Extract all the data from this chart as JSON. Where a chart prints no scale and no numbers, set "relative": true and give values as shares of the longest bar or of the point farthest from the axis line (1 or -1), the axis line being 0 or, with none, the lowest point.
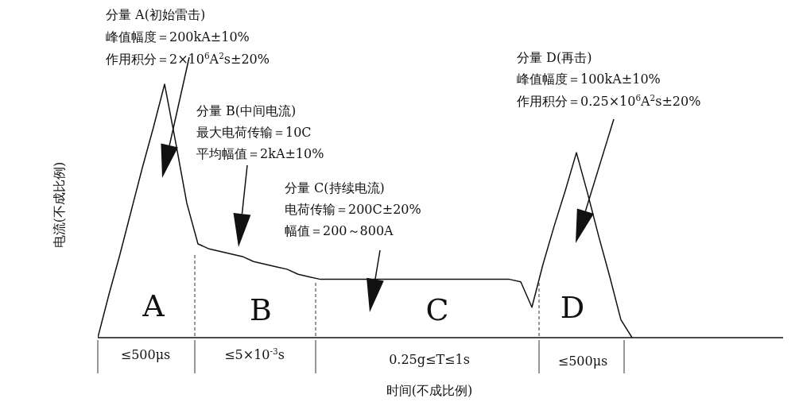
{
  "chart_data": {
    "type": "line",
    "relative": true,
    "xlabel": "时间(不成比例)",
    "ylabel": "电流(不成比例)",
    "color": "#111111",
    "marker": "none",
    "line_style": "solid",
    "categories": [
      null,
      null,
      null,
      null,
      null,
      null,
      null,
      null,
      null,
      null,
      null,
      null,
      null,
      null,
      null,
      null,
      null,
      null,
      null,
      null,
      null,
      null,
      null,
      null,
      null,
      null,
      null,
      null,
      null,
      null,
      null,
      null,
      null,
      null,
      null,
      null,
      null,
      null,
      null,
      null,
      null,
      null,
      null,
      null,
      null,
      null,
      null,
      null,
      null
    ],
    "values": [
      0,
      0.17,
      0.33,
      0.5,
      0.67,
      0.83,
      1,
      0.77,
      0.53,
      0.37,
      0.35,
      0.34,
      0.33,
      0.32,
      0.3,
      0.29,
      0.28,
      0.27,
      0.25,
      0.24,
      0.23,
      0.23,
      0.23,
      0.23,
      0.23,
      0.23,
      0.23,
      0.23,
      0.23,
      0.23,
      0.23,
      0.23,
      0.23,
      0.23,
      0.23,
      0.23,
      0.23,
      0.23,
      0.22,
      0.12,
      0.29,
      0.44,
      0.58,
      0.73,
      0.57,
      0.4,
      0.24,
      0.07,
      0
    ],
    "annotations": [
      "分量 A(初始雷击)",
      "峰值幅度＝200kA±10%",
      "作用积分＝2×10$^{6}$A$^{2}$s±20%",
      "分量 B(中间电流)",
      "最大电荷传输＝10C",
      "平均幅值＝2kA±10%",
      "分量 C(持续电流)",
      "电荷传输＝200C±20%",
      "幅值＝200～800A",
      "分量 D(再击)",
      "峰值幅度＝100kA±10%",
      "作用积分＝0.25×10$^{6}$A$^{2}$s±20%",
      "A",
      "B",
      "C",
      "D",
      "≤500μs",
      "≤5×10$^{-3}$s",
      "0.25g≤T≤1s",
      "≤500μs"
    ]
  }
}
